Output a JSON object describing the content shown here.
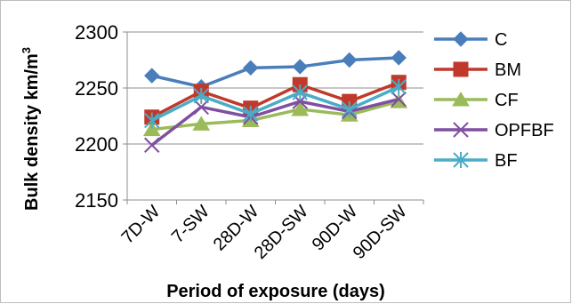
{
  "chart_data": {
    "type": "line",
    "title": "",
    "xlabel": "Period of exposure (days)",
    "ylabel": "Bulk density km/m",
    "ylabel_superscript": "3",
    "categories": [
      "7D-W",
      "7-SW",
      "28D-W",
      "28D-SW",
      "90D-W",
      "90D-SW"
    ],
    "ylim": [
      2150,
      2300
    ],
    "yticks": [
      2150,
      2200,
      2250,
      2300
    ],
    "grid": "horizontal",
    "legend_position": "right",
    "series": [
      {
        "name": "C",
        "color": "#4a7ebb",
        "marker": "diamond",
        "values": [
          2261,
          2251,
          2268,
          2269,
          2275,
          2277
        ]
      },
      {
        "name": "BM",
        "color": "#c0392b",
        "marker": "square",
        "values": [
          2224,
          2247,
          2232,
          2253,
          2238,
          2255
        ]
      },
      {
        "name": "CF",
        "color": "#9bbb59",
        "marker": "triangle",
        "values": [
          2213,
          2218,
          2221,
          2231,
          2226,
          2238
        ]
      },
      {
        "name": "OPFBF",
        "color": "#7f4fa0",
        "marker": "x",
        "values": [
          2199,
          2233,
          2224,
          2238,
          2229,
          2240
        ]
      },
      {
        "name": "BF",
        "color": "#4bacc6",
        "marker": "star",
        "values": [
          2221,
          2243,
          2227,
          2246,
          2231,
          2251
        ]
      }
    ]
  }
}
